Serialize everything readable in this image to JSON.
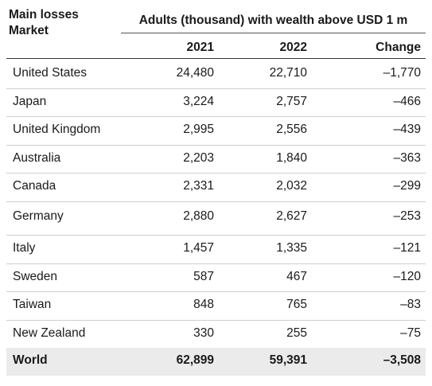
{
  "chart_data": {
    "type": "table",
    "title": "",
    "header_left": [
      "Main losses",
      "Market"
    ],
    "group_header": "Adults (thousand) with wealth above USD 1 m",
    "columns": [
      "2021",
      "2022",
      "Change"
    ],
    "rows": [
      {
        "market": "United States",
        "v2021": "24,480",
        "v2022": "22,710",
        "change": "–1,770"
      },
      {
        "market": "Japan",
        "v2021": "3,224",
        "v2022": "2,757",
        "change": "–466"
      },
      {
        "market": "United Kingdom",
        "v2021": "2,995",
        "v2022": "2,556",
        "change": "–439"
      },
      {
        "market": "Australia",
        "v2021": "2,203",
        "v2022": "1,840",
        "change": "–363"
      },
      {
        "market": "Canada",
        "v2021": "2,331",
        "v2022": "2,032",
        "change": "–299"
      },
      {
        "market": "Germany",
        "v2021": "2,880",
        "v2022": "2,627",
        "change": "–253"
      },
      {
        "market": "Italy",
        "v2021": "1,457",
        "v2022": "1,335",
        "change": "–121"
      },
      {
        "market": "Sweden",
        "v2021": "587",
        "v2022": "467",
        "change": "–120"
      },
      {
        "market": "Taiwan",
        "v2021": "848",
        "v2022": "765",
        "change": "–83"
      },
      {
        "market": "New Zealand",
        "v2021": "330",
        "v2022": "255",
        "change": "–75"
      }
    ],
    "total": {
      "market": "World",
      "v2021": "62,899",
      "v2022": "59,391",
      "change": "–3,508"
    }
  }
}
